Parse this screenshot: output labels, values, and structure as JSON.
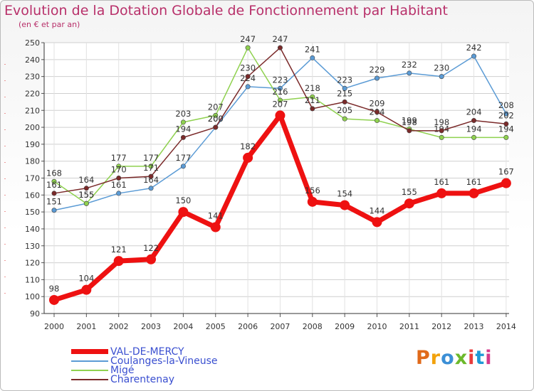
{
  "title": "Evolution de la Dotation Globale de Fonctionnement par Habitant",
  "subtitle": "(en € et par an)",
  "logo": {
    "text": "Proxiti",
    "colors": [
      "#e06a1a",
      "#f2a20c",
      "#3b8fd6",
      "#6cb92b",
      "#e83c3c",
      "#1f9ad6",
      "#d63a8c"
    ]
  },
  "chart_data": {
    "type": "line",
    "x": [
      "2000",
      "2001",
      "2002",
      "2003",
      "2004",
      "2005",
      "2006",
      "2007",
      "2008",
      "2009",
      "2010",
      "2011",
      "2012",
      "2013",
      "2014"
    ],
    "ylim": [
      90,
      250
    ],
    "yticks": [
      90,
      100,
      110,
      120,
      130,
      140,
      150,
      160,
      170,
      180,
      190,
      200,
      210,
      220,
      230,
      240,
      250
    ],
    "grid": true,
    "legend_position": "bottom-left",
    "series": [
      {
        "name": "Coulanges-la-Vineuse",
        "color": "#5b9bd5",
        "values": [
          151,
          155,
          161,
          164,
          177,
          200,
          224,
          223,
          241,
          223,
          229,
          232,
          230,
          242,
          208
        ]
      },
      {
        "name": "Migé",
        "color": "#8fd14f",
        "values": [
          168,
          155,
          177,
          177,
          203,
          207,
          247,
          216,
          218,
          205,
          204,
          199,
          194,
          194,
          194
        ]
      },
      {
        "name": "Charentenay",
        "color": "#7b2a2a",
        "values": [
          161,
          164,
          170,
          171,
          194,
          200,
          230,
          247,
          211,
          215,
          209,
          198,
          198,
          204,
          202
        ]
      },
      {
        "name": "VAL-DE-MERCY",
        "color": "#ee1111",
        "values": [
          98,
          104,
          121,
          122,
          150,
          141,
          182,
          207,
          156,
          154,
          144,
          155,
          161,
          161,
          167
        ]
      }
    ],
    "legend_order": [
      "VAL-DE-MERCY",
      "Coulanges-la-Vineuse",
      "Migé",
      "Charentenay"
    ]
  }
}
